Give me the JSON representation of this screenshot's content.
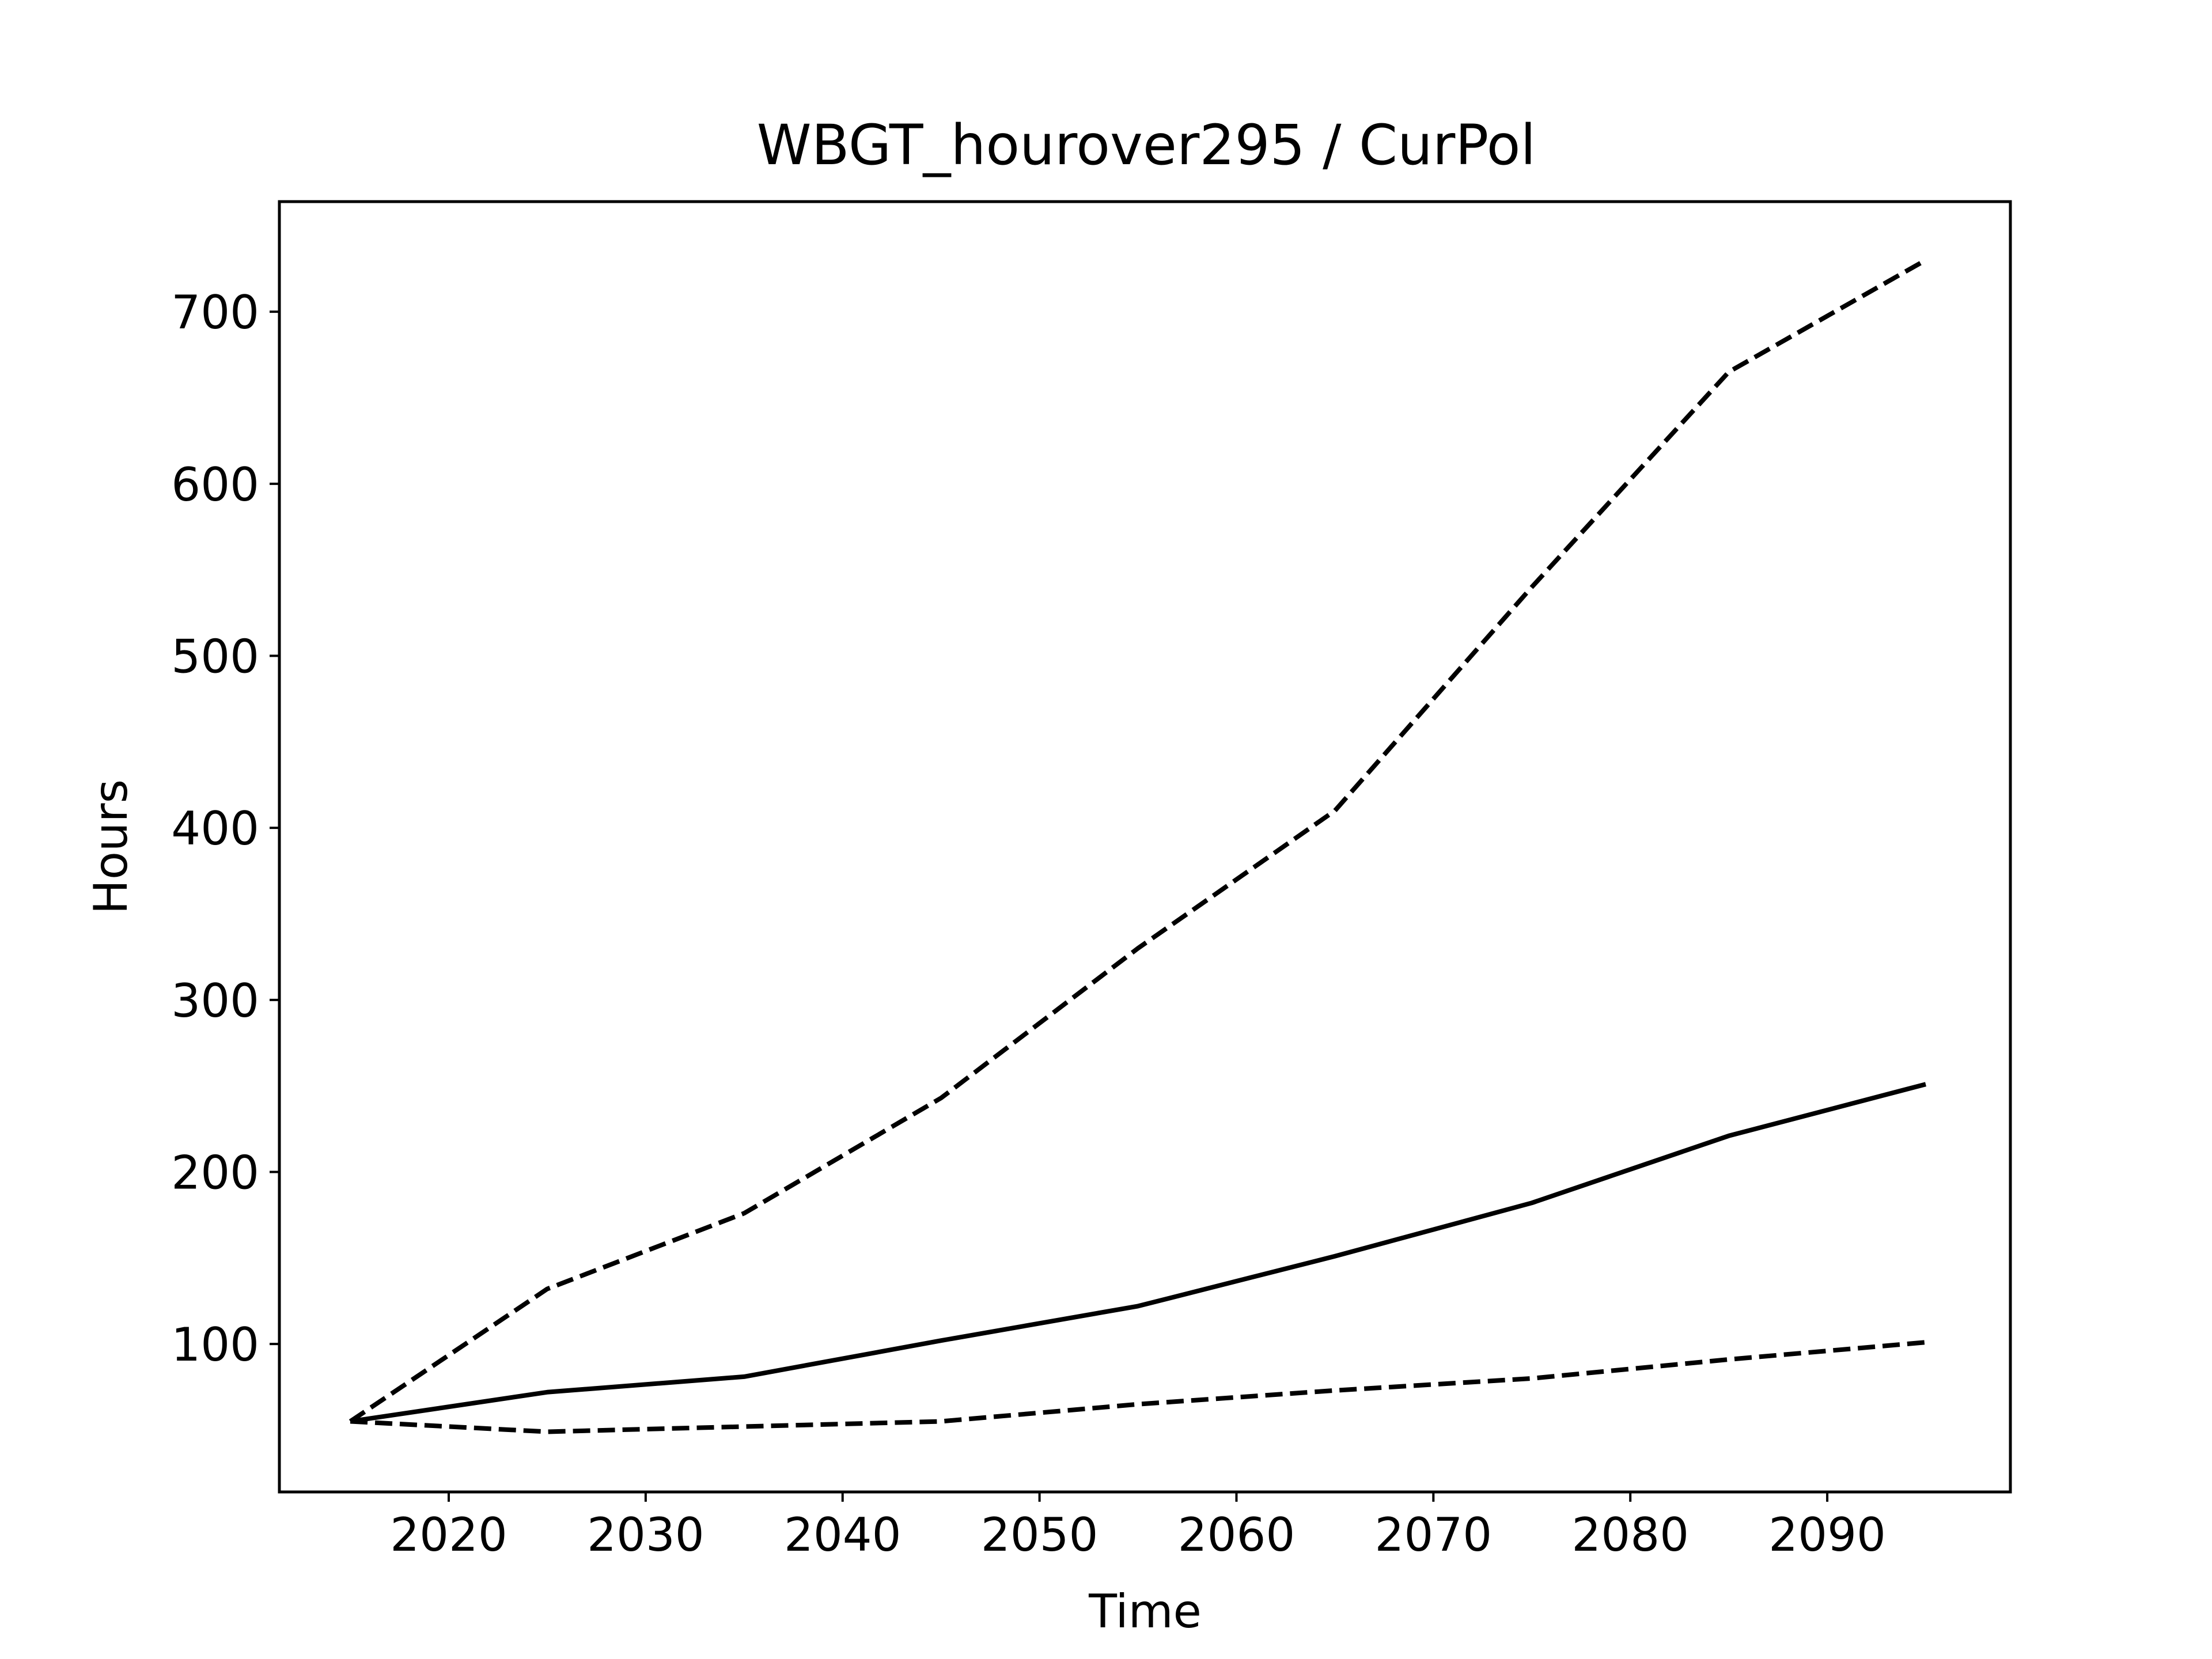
{
  "chart_data": {
    "type": "line",
    "title": "WBGT_hourover295 / CurPol",
    "xlabel": "Time",
    "ylabel": "Hours",
    "xlim": [
      2011.4,
      2099.3
    ],
    "ylim": [
      14,
      764
    ],
    "xticks": [
      2020,
      2030,
      2040,
      2050,
      2060,
      2070,
      2080,
      2090
    ],
    "yticks": [
      100,
      200,
      300,
      400,
      500,
      600,
      700
    ],
    "grid": false,
    "legend": "none",
    "color": "#000000",
    "x": [
      2015,
      2025,
      2035,
      2045,
      2055,
      2065,
      2075,
      2085,
      2095
    ],
    "series": [
      {
        "style": "dashed",
        "values": [
          55,
          132,
          176,
          243,
          330,
          410,
          540,
          665,
          730
        ]
      },
      {
        "style": "solid",
        "values": [
          55,
          72,
          81,
          102,
          122,
          151,
          182,
          221,
          251
        ]
      },
      {
        "style": "dashed",
        "values": [
          55,
          49,
          52,
          55,
          65,
          73,
          80,
          91,
          101
        ]
      }
    ]
  }
}
